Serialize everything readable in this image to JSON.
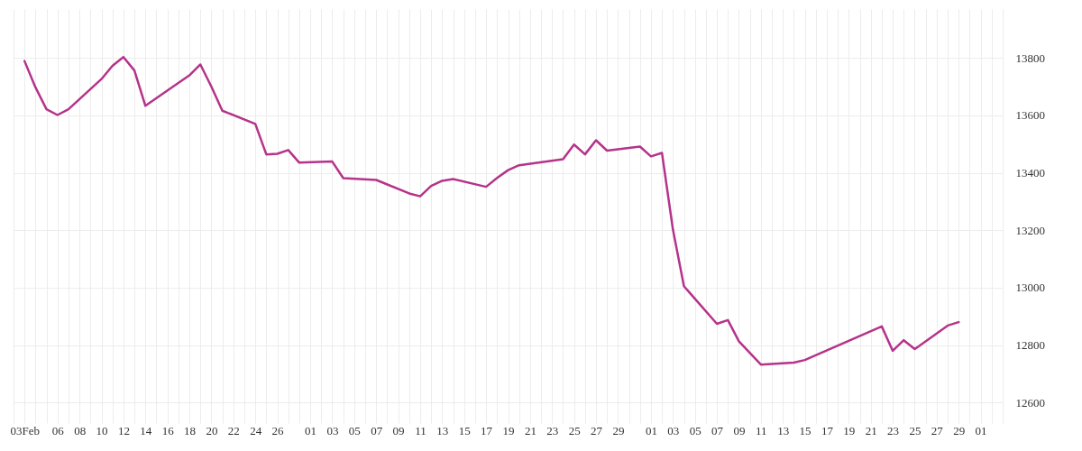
{
  "chart_data": {
    "type": "line",
    "x": [
      "--02-03",
      "--02-04",
      "--02-05",
      "--02-06",
      "--02-07",
      "--02-10",
      "--02-11",
      "--02-12",
      "--02-13",
      "--02-14",
      "--02-18",
      "--02-19",
      "--02-20",
      "--02-21",
      "--02-24",
      "--02-25",
      "--02-26",
      "--02-27",
      "--02-28",
      "--03-03",
      "--03-04",
      "--03-07",
      "--03-10",
      "--03-11",
      "--03-12",
      "--03-13",
      "--03-14",
      "--03-17",
      "--03-18",
      "--03-19",
      "--03-20",
      "--03-24",
      "--03-25",
      "--03-26",
      "--03-27",
      "--03-28",
      "--03-31",
      "--04-01",
      "--04-02",
      "--04-03",
      "--04-04",
      "--04-07",
      "--04-08",
      "--04-09",
      "--04-11",
      "--04-14",
      "--04-15",
      "--04-22",
      "--04-23",
      "--04-24",
      "--04-25",
      "--04-28",
      "--04-29"
    ],
    "series": [
      {
        "color": "#b5338a",
        "values": [
          13789,
          13697,
          13621,
          13601,
          13621,
          13726,
          13772,
          13803,
          13756,
          13633,
          13739,
          13777,
          13700,
          13616,
          13570,
          13464,
          13466,
          13479,
          13435,
          13439,
          13381,
          13375,
          13328,
          13318,
          13354,
          13372,
          13378,
          13351,
          13382,
          13409,
          13426,
          13447,
          13498,
          13464,
          13513,
          13477,
          13491,
          13457,
          13469,
          13202,
          13005,
          12874,
          12887,
          12813,
          12732,
          12739,
          12748,
          12865,
          12780,
          12817,
          12786,
          12868,
          12880
        ]
      }
    ],
    "ylim": [
      12560,
      13970
    ],
    "yticks": [
      12600,
      13000,
      13200,
      13400,
      13600,
      13800,
      12800
    ],
    "xlim": [
      "--02-02",
      "--05-03"
    ],
    "xticks": [
      {
        "value": "--02-02",
        "label": null
      },
      {
        "value": "--02-03",
        "label": "03Feb"
      },
      {
        "value": "--02-04",
        "label": null
      },
      {
        "value": "--02-05",
        "label": null
      },
      {
        "value": "--02-06",
        "label": "06"
      },
      {
        "value": "--02-07",
        "label": null
      },
      {
        "value": "--02-08",
        "label": "08"
      },
      {
        "value": "--02-09",
        "label": null
      },
      {
        "value": "--02-10",
        "label": "10"
      },
      {
        "value": "--02-11",
        "label": null
      },
      {
        "value": "--02-12",
        "label": "12"
      },
      {
        "value": "--02-13",
        "label": null
      },
      {
        "value": "--02-14",
        "label": "14"
      },
      {
        "value": "--02-15",
        "label": null
      },
      {
        "value": "--02-16",
        "label": "16"
      },
      {
        "value": "--02-17",
        "label": null
      },
      {
        "value": "--02-18",
        "label": "18"
      },
      {
        "value": "--02-19",
        "label": null
      },
      {
        "value": "--02-20",
        "label": "20"
      },
      {
        "value": "--02-21",
        "label": null
      },
      {
        "value": "--02-22",
        "label": "22"
      },
      {
        "value": "--02-23",
        "label": null
      },
      {
        "value": "--02-24",
        "label": "24"
      },
      {
        "value": "--02-25",
        "label": null
      },
      {
        "value": "--02-26",
        "label": "26"
      },
      {
        "value": "--02-27",
        "label": null
      },
      {
        "value": "--02-28",
        "label": null
      },
      {
        "value": "--03-01",
        "label": "01"
      },
      {
        "value": "--03-02",
        "label": null
      },
      {
        "value": "--03-03",
        "label": "03"
      },
      {
        "value": "--03-04",
        "label": null
      },
      {
        "value": "--03-05",
        "label": "05"
      },
      {
        "value": "--03-06",
        "label": null
      },
      {
        "value": "--03-07",
        "label": "07"
      },
      {
        "value": "--03-08",
        "label": null
      },
      {
        "value": "--03-09",
        "label": "09"
      },
      {
        "value": "--03-10",
        "label": null
      },
      {
        "value": "--03-11",
        "label": "11"
      },
      {
        "value": "--03-12",
        "label": null
      },
      {
        "value": "--03-13",
        "label": "13"
      },
      {
        "value": "--03-14",
        "label": null
      },
      {
        "value": "--03-15",
        "label": "15"
      },
      {
        "value": "--03-16",
        "label": null
      },
      {
        "value": "--03-17",
        "label": "17"
      },
      {
        "value": "--03-18",
        "label": null
      },
      {
        "value": "--03-19",
        "label": "19"
      },
      {
        "value": "--03-20",
        "label": null
      },
      {
        "value": "--03-21",
        "label": "21"
      },
      {
        "value": "--03-22",
        "label": null
      },
      {
        "value": "--03-23",
        "label": "23"
      },
      {
        "value": "--03-24",
        "label": null
      },
      {
        "value": "--03-25",
        "label": "25"
      },
      {
        "value": "--03-26",
        "label": null
      },
      {
        "value": "--03-27",
        "label": "27"
      },
      {
        "value": "--03-28",
        "label": null
      },
      {
        "value": "--03-29",
        "label": "29"
      },
      {
        "value": "--03-30",
        "label": null
      },
      {
        "value": "--03-31",
        "label": null
      },
      {
        "value": "--04-01",
        "label": "01"
      },
      {
        "value": "--04-02",
        "label": null
      },
      {
        "value": "--04-03",
        "label": "03"
      },
      {
        "value": "--04-04",
        "label": null
      },
      {
        "value": "--04-05",
        "label": "05"
      },
      {
        "value": "--04-06",
        "label": null
      },
      {
        "value": "--04-07",
        "label": "07"
      },
      {
        "value": "--04-08",
        "label": null
      },
      {
        "value": "--04-09",
        "label": "09"
      },
      {
        "value": "--04-10",
        "label": null
      },
      {
        "value": "--04-11",
        "label": "11"
      },
      {
        "value": "--04-12",
        "label": null
      },
      {
        "value": "--04-13",
        "label": "13"
      },
      {
        "value": "--04-14",
        "label": null
      },
      {
        "value": "--04-15",
        "label": "15"
      },
      {
        "value": "--04-16",
        "label": null
      },
      {
        "value": "--04-17",
        "label": "17"
      },
      {
        "value": "--04-18",
        "label": null
      },
      {
        "value": "--04-19",
        "label": "19"
      },
      {
        "value": "--04-20",
        "label": null
      },
      {
        "value": "--04-21",
        "label": "21"
      },
      {
        "value": "--04-22",
        "label": null
      },
      {
        "value": "--04-23",
        "label": "23"
      },
      {
        "value": "--04-24",
        "label": null
      },
      {
        "value": "--04-25",
        "label": "25"
      },
      {
        "value": "--04-26",
        "label": null
      },
      {
        "value": "--04-27",
        "label": "27"
      },
      {
        "value": "--04-28",
        "label": null
      },
      {
        "value": "--04-29",
        "label": "29"
      },
      {
        "value": "--04-30",
        "label": null
      },
      {
        "value": "--05-01",
        "label": "01"
      },
      {
        "value": "--05-02",
        "label": null
      },
      {
        "value": "--05-03",
        "label": null
      }
    ],
    "grid": true
  }
}
